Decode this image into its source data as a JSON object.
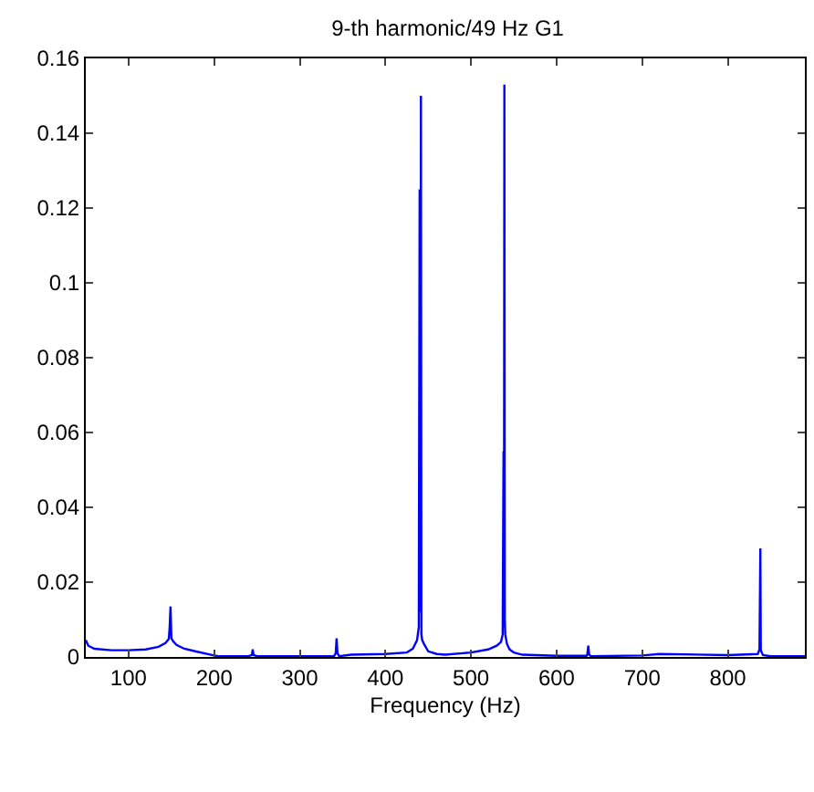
{
  "chart_data": {
    "type": "line",
    "title": "9-th harmonic/49 Hz G1",
    "xlabel": "Frequency (Hz)",
    "series": [
      {
        "color": "#0000ff",
        "x": [
          50,
          53,
          60,
          80,
          100,
          120,
          135,
          143,
          147,
          148,
          149,
          150,
          152,
          156,
          165,
          180,
          200,
          205,
          240,
          244,
          245,
          246,
          250,
          300,
          340,
          342,
          343,
          344,
          346,
          360,
          400,
          425,
          432,
          437,
          439,
          440,
          441,
          441.5,
          442,
          443,
          445,
          450,
          460,
          470,
          500,
          520,
          530,
          535,
          537,
          538,
          538.5,
          539,
          539.5,
          540,
          542,
          545,
          550,
          560,
          600,
          635,
          636,
          637,
          638,
          640,
          700,
          720,
          800,
          835,
          837,
          838,
          838.5,
          839,
          841,
          850,
          890
        ],
        "values": [
          0.0045,
          0.003,
          0.0022,
          0.0018,
          0.0018,
          0.002,
          0.0027,
          0.0037,
          0.0048,
          0.008,
          0.0135,
          0.005,
          0.0042,
          0.0032,
          0.0022,
          0.0014,
          0.0004,
          0.0002,
          0.0002,
          0.0005,
          0.002,
          0.0005,
          0.0002,
          0.0002,
          0.0002,
          0.001,
          0.005,
          0.001,
          0.0002,
          0.0006,
          0.0008,
          0.0012,
          0.0022,
          0.0045,
          0.008,
          0.125,
          0.012,
          0.15,
          0.006,
          0.0045,
          0.0035,
          0.0015,
          0.0008,
          0.0006,
          0.0012,
          0.002,
          0.003,
          0.004,
          0.006,
          0.055,
          0.008,
          0.153,
          0.01,
          0.006,
          0.0035,
          0.002,
          0.0012,
          0.0006,
          0.0003,
          0.0003,
          0.0008,
          0.003,
          0.0006,
          0.0002,
          0.0004,
          0.0008,
          0.0005,
          0.0008,
          0.002,
          0.029,
          0.002,
          0.0015,
          0.0005,
          0.0002,
          0.0002
        ]
      }
    ],
    "xlim": [
      50,
      890
    ],
    "xticks": [
      100,
      200,
      300,
      400,
      500,
      600,
      700,
      800
    ],
    "ylim": [
      0,
      0.16
    ],
    "yticks": [
      0,
      0.02,
      0.04,
      0.06,
      0.08,
      0.1,
      0.12,
      0.14,
      0.16
    ],
    "grid": false,
    "marker": "none",
    "line_style": "solid"
  }
}
